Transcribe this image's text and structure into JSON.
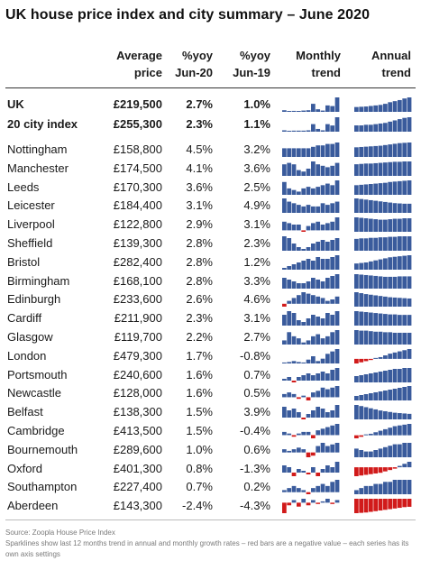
{
  "title": "UK house price index and city summary – June 2020",
  "headers": {
    "price": [
      "Average",
      "price"
    ],
    "yoy20": [
      "%yoy",
      "Jun-20"
    ],
    "yoy19": [
      "%yoy",
      "Jun-19"
    ],
    "monthly": [
      "Monthly",
      "trend"
    ],
    "annual": [
      "Annual",
      "trend"
    ]
  },
  "colors": {
    "positive": "#3a5b9c",
    "negative": "#d11a1a"
  },
  "summary_rows": [
    {
      "city": "UK",
      "price": "£219,500",
      "yoy20": "2.7%",
      "yoy19": "1.0%",
      "monthly": [
        0.05,
        0.02,
        0.03,
        0.01,
        0.04,
        0.05,
        0.25,
        0.08,
        0.04,
        0.2,
        0.18,
        0.45
      ],
      "annual": [
        0.9,
        0.95,
        1.0,
        1.1,
        1.2,
        1.3,
        1.5,
        1.8,
        2.0,
        2.2,
        2.5,
        2.7
      ]
    },
    {
      "city": "20 city index",
      "price": "£255,300",
      "yoy20": "2.3%",
      "yoy19": "1.1%",
      "monthly": [
        0.04,
        0.02,
        0.03,
        0.03,
        0.03,
        0.04,
        0.22,
        0.08,
        0.04,
        0.22,
        0.18,
        0.42
      ],
      "annual": [
        1.0,
        1.0,
        1.1,
        1.1,
        1.2,
        1.3,
        1.4,
        1.6,
        1.8,
        2.0,
        2.2,
        2.3
      ]
    }
  ],
  "city_rows": [
    {
      "city": "Nottingham",
      "price": "£158,800",
      "yoy20": "4.5%",
      "yoy19": "3.2%",
      "monthly": [
        0.3,
        0.3,
        0.3,
        0.3,
        0.3,
        0.3,
        0.35,
        0.4,
        0.4,
        0.45,
        0.45,
        0.5
      ],
      "annual": [
        3.0,
        3.1,
        3.2,
        3.3,
        3.4,
        3.5,
        3.7,
        3.9,
        4.1,
        4.3,
        4.4,
        4.5
      ]
    },
    {
      "city": "Manchester",
      "price": "£174,500",
      "yoy20": "4.1%",
      "yoy19": "3.6%",
      "monthly": [
        0.4,
        0.45,
        0.4,
        0.2,
        0.15,
        0.25,
        0.5,
        0.4,
        0.35,
        0.3,
        0.35,
        0.45
      ],
      "annual": [
        3.3,
        3.4,
        3.5,
        3.5,
        3.6,
        3.7,
        3.8,
        3.9,
        4.0,
        4.0,
        4.1,
        4.1
      ]
    },
    {
      "city": "Leeds",
      "price": "£170,300",
      "yoy20": "3.6%",
      "yoy19": "2.5%",
      "monthly": [
        0.4,
        0.2,
        0.15,
        0.1,
        0.2,
        0.25,
        0.2,
        0.25,
        0.3,
        0.35,
        0.3,
        0.45
      ],
      "annual": [
        2.4,
        2.5,
        2.6,
        2.7,
        2.8,
        2.9,
        3.0,
        3.2,
        3.3,
        3.4,
        3.5,
        3.6
      ]
    },
    {
      "city": "Leicester",
      "price": "£184,400",
      "yoy20": "3.1%",
      "yoy19": "4.9%",
      "monthly": [
        0.45,
        0.35,
        0.3,
        0.25,
        0.2,
        0.25,
        0.2,
        0.2,
        0.3,
        0.25,
        0.3,
        0.35
      ],
      "annual": [
        4.9,
        4.7,
        4.5,
        4.3,
        4.1,
        3.9,
        3.7,
        3.5,
        3.3,
        3.2,
        3.1,
        3.1
      ]
    },
    {
      "city": "Liverpool",
      "price": "£122,800",
      "yoy20": "2.9%",
      "yoy19": "3.1%",
      "monthly": [
        0.3,
        0.25,
        0.2,
        0.2,
        -0.05,
        0.15,
        0.25,
        0.3,
        0.2,
        0.25,
        0.3,
        0.45
      ],
      "annual": [
        3.1,
        3.0,
        2.9,
        2.8,
        2.7,
        2.6,
        2.6,
        2.7,
        2.8,
        2.8,
        2.9,
        2.9
      ]
    },
    {
      "city": "Sheffield",
      "price": "£139,300",
      "yoy20": "2.8%",
      "yoy19": "2.3%",
      "monthly": [
        0.4,
        0.35,
        0.2,
        0.1,
        0.05,
        0.1,
        0.2,
        0.25,
        0.3,
        0.25,
        0.3,
        0.35
      ],
      "annual": [
        2.3,
        2.4,
        2.4,
        2.5,
        2.5,
        2.6,
        2.6,
        2.7,
        2.7,
        2.8,
        2.8,
        2.8
      ]
    },
    {
      "city": "Bristol",
      "price": "£282,400",
      "yoy20": "2.8%",
      "yoy19": "1.2%",
      "monthly": [
        0.05,
        0.1,
        0.15,
        0.2,
        0.25,
        0.3,
        0.25,
        0.35,
        0.3,
        0.3,
        0.35,
        0.4
      ],
      "annual": [
        1.2,
        1.3,
        1.4,
        1.6,
        1.8,
        2.0,
        2.2,
        2.4,
        2.5,
        2.6,
        2.7,
        2.8
      ]
    },
    {
      "city": "Birmingham",
      "price": "£168,100",
      "yoy20": "2.8%",
      "yoy19": "3.3%",
      "monthly": [
        0.3,
        0.25,
        0.2,
        0.15,
        0.15,
        0.2,
        0.3,
        0.25,
        0.2,
        0.3,
        0.35,
        0.4
      ],
      "annual": [
        3.3,
        3.2,
        3.1,
        3.0,
        2.9,
        2.8,
        2.7,
        2.7,
        2.7,
        2.8,
        2.8,
        2.8
      ]
    },
    {
      "city": "Edinburgh",
      "price": "£233,600",
      "yoy20": "2.6%",
      "yoy19": "4.6%",
      "monthly": [
        -0.1,
        0.1,
        0.2,
        0.3,
        0.4,
        0.35,
        0.3,
        0.25,
        0.2,
        0.1,
        0.15,
        0.25
      ],
      "annual": [
        4.6,
        4.3,
        4.0,
        3.8,
        3.6,
        3.4,
        3.2,
        3.0,
        2.9,
        2.8,
        2.7,
        2.6
      ]
    },
    {
      "city": "Cardiff",
      "price": "£211,900",
      "yoy20": "2.3%",
      "yoy19": "3.1%",
      "monthly": [
        0.3,
        0.4,
        0.35,
        0.15,
        0.1,
        0.2,
        0.3,
        0.25,
        0.2,
        0.35,
        0.3,
        0.4
      ],
      "annual": [
        3.1,
        3.0,
        2.9,
        2.8,
        2.7,
        2.6,
        2.5,
        2.4,
        2.4,
        2.3,
        2.3,
        2.3
      ]
    },
    {
      "city": "Glasgow",
      "price": "£119,700",
      "yoy20": "2.2%",
      "yoy19": "2.7%",
      "monthly": [
        0.1,
        0.3,
        0.2,
        0.15,
        0.05,
        0.1,
        0.2,
        0.25,
        0.15,
        0.2,
        0.3,
        0.35
      ],
      "annual": [
        2.7,
        2.6,
        2.6,
        2.5,
        2.4,
        2.4,
        2.3,
        2.3,
        2.2,
        2.2,
        2.2,
        2.2
      ]
    },
    {
      "city": "London",
      "price": "£479,300",
      "yoy20": "1.7%",
      "yoy19": "-0.8%",
      "monthly": [
        0.02,
        0.03,
        0.05,
        0.03,
        0.02,
        0.08,
        0.15,
        0.05,
        0.1,
        0.2,
        0.25,
        0.3
      ],
      "annual": [
        -0.8,
        -0.6,
        -0.4,
        -0.2,
        0.0,
        0.3,
        0.6,
        0.9,
        1.1,
        1.3,
        1.5,
        1.7
      ]
    },
    {
      "city": "Portsmouth",
      "price": "£240,600",
      "yoy20": "1.6%",
      "yoy19": "0.7%",
      "monthly": [
        0.05,
        0.1,
        -0.05,
        0.1,
        0.15,
        0.2,
        0.15,
        0.2,
        0.25,
        0.2,
        0.3,
        0.35
      ],
      "annual": [
        0.7,
        0.8,
        0.9,
        1.0,
        1.1,
        1.2,
        1.3,
        1.4,
        1.5,
        1.5,
        1.6,
        1.6
      ]
    },
    {
      "city": "Newcastle",
      "price": "£128,000",
      "yoy20": "1.6%",
      "yoy19": "0.5%",
      "monthly": [
        0.1,
        0.15,
        0.1,
        -0.05,
        0.05,
        -0.1,
        0.15,
        0.2,
        0.3,
        0.25,
        0.3,
        0.35
      ],
      "annual": [
        0.5,
        0.6,
        0.7,
        0.8,
        0.9,
        1.0,
        1.1,
        1.2,
        1.3,
        1.4,
        1.5,
        1.6
      ]
    },
    {
      "city": "Belfast",
      "price": "£138,300",
      "yoy20": "1.5%",
      "yoy19": "3.9%",
      "monthly": [
        0.3,
        0.2,
        0.25,
        0.15,
        -0.05,
        0.1,
        0.2,
        0.3,
        0.25,
        0.15,
        0.2,
        0.35
      ],
      "annual": [
        3.9,
        3.6,
        3.3,
        3.0,
        2.7,
        2.4,
        2.2,
        2.0,
        1.8,
        1.7,
        1.6,
        1.5
      ]
    },
    {
      "city": "Cambridge",
      "price": "£413,500",
      "yoy20": "1.5%",
      "yoy19": "-0.4%",
      "monthly": [
        0.1,
        0.05,
        -0.05,
        0.05,
        0.1,
        0.1,
        -0.1,
        0.15,
        0.2,
        0.25,
        0.3,
        0.35
      ],
      "annual": [
        -0.4,
        -0.2,
        0.0,
        0.2,
        0.4,
        0.6,
        0.8,
        1.0,
        1.2,
        1.3,
        1.4,
        1.5
      ]
    },
    {
      "city": "Bournemouth",
      "price": "£289,600",
      "yoy20": "1.0%",
      "yoy19": "0.6%",
      "monthly": [
        0.1,
        0.05,
        0.1,
        0.15,
        0.1,
        -0.15,
        -0.1,
        0.2,
        0.3,
        0.2,
        0.25,
        0.3
      ],
      "annual": [
        0.6,
        0.5,
        0.4,
        0.4,
        0.5,
        0.6,
        0.7,
        0.8,
        0.9,
        0.9,
        1.0,
        1.0
      ]
    },
    {
      "city": "Oxford",
      "price": "£401,300",
      "yoy20": "0.8%",
      "yoy19": "-1.3%",
      "monthly": [
        0.2,
        0.15,
        -0.1,
        0.1,
        0.05,
        -0.05,
        0.15,
        -0.1,
        0.1,
        0.2,
        0.15,
        0.3
      ],
      "annual": [
        -1.3,
        -1.2,
        -1.1,
        -1.0,
        -0.9,
        -0.8,
        -0.6,
        -0.4,
        -0.2,
        0.2,
        0.5,
        0.8
      ]
    },
    {
      "city": "Southampton",
      "price": "£227,400",
      "yoy20": "0.7%",
      "yoy19": "0.2%",
      "monthly": [
        0.05,
        0.1,
        0.15,
        0.1,
        0.05,
        -0.05,
        0.1,
        0.15,
        0.2,
        0.15,
        0.25,
        0.3
      ],
      "annual": [
        0.2,
        0.3,
        0.4,
        0.4,
        0.5,
        0.5,
        0.6,
        0.6,
        0.7,
        0.7,
        0.7,
        0.7
      ]
    },
    {
      "city": "Aberdeen",
      "price": "£143,300",
      "yoy20": "-2.4%",
      "yoy19": "-4.3%",
      "monthly": [
        -0.4,
        -0.1,
        0.1,
        -0.15,
        0.15,
        -0.1,
        0.1,
        -0.05,
        0.05,
        0.15,
        -0.05,
        0.1
      ],
      "annual": [
        -4.3,
        -4.2,
        -4.1,
        -3.9,
        -3.7,
        -3.5,
        -3.3,
        -3.1,
        -2.9,
        -2.7,
        -2.5,
        -2.4
      ]
    }
  ],
  "source": "Source: Zoopla House Price Index",
  "footnote": "Sparklines show last 12 months trend in annual and monthly growth rates – red bars are a negative value – each series has its own axis settings"
}
